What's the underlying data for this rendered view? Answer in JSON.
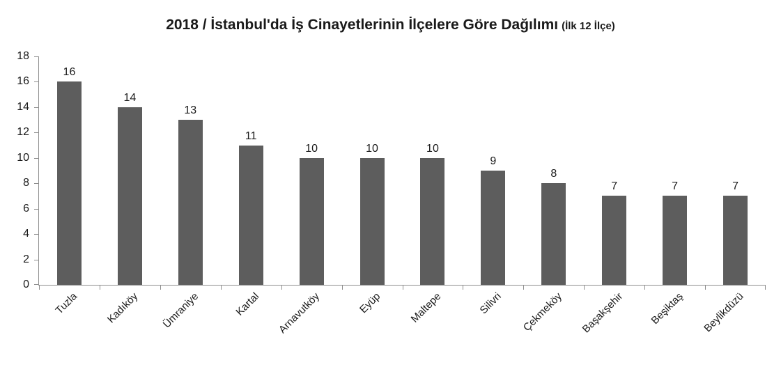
{
  "chart": {
    "title_main": "2018 / İstanbul'da İş Cinayetlerinin İlçelere Göre Dağılımı",
    "title_suffix": "(İlk 12 İlçe)"
  },
  "chart_data": {
    "type": "bar",
    "title": "2018 / İstanbul'da İş Cinayetlerinin İlçelere Göre Dağılımı (İlk 12 İlçe)",
    "categories": [
      "Tuzla",
      "Kadıköy",
      "Ümraniye",
      "Kartal",
      "Arnavutköy",
      "Eyüp",
      "Maltepe",
      "Silivri",
      "Çekmeköy",
      "Başakşehir",
      "Beşiktaş",
      "Beylikdüzü"
    ],
    "values": [
      16,
      14,
      13,
      11,
      10,
      10,
      10,
      9,
      8,
      7,
      7,
      7
    ],
    "data_labels": [
      16,
      14,
      13,
      11,
      10,
      10,
      10,
      9,
      8,
      7,
      7,
      7
    ],
    "xlabel": "",
    "ylabel": "",
    "ylim": [
      0,
      18
    ],
    "yticks": [
      0,
      2,
      4,
      6,
      8,
      10,
      12,
      14,
      16,
      18
    ],
    "grid": false,
    "legend": false,
    "category_label_rotation_deg": 45,
    "bar_color": "#5d5d5d",
    "axis_color": "#8e8e8e",
    "text_color": "#1a1a1a"
  }
}
